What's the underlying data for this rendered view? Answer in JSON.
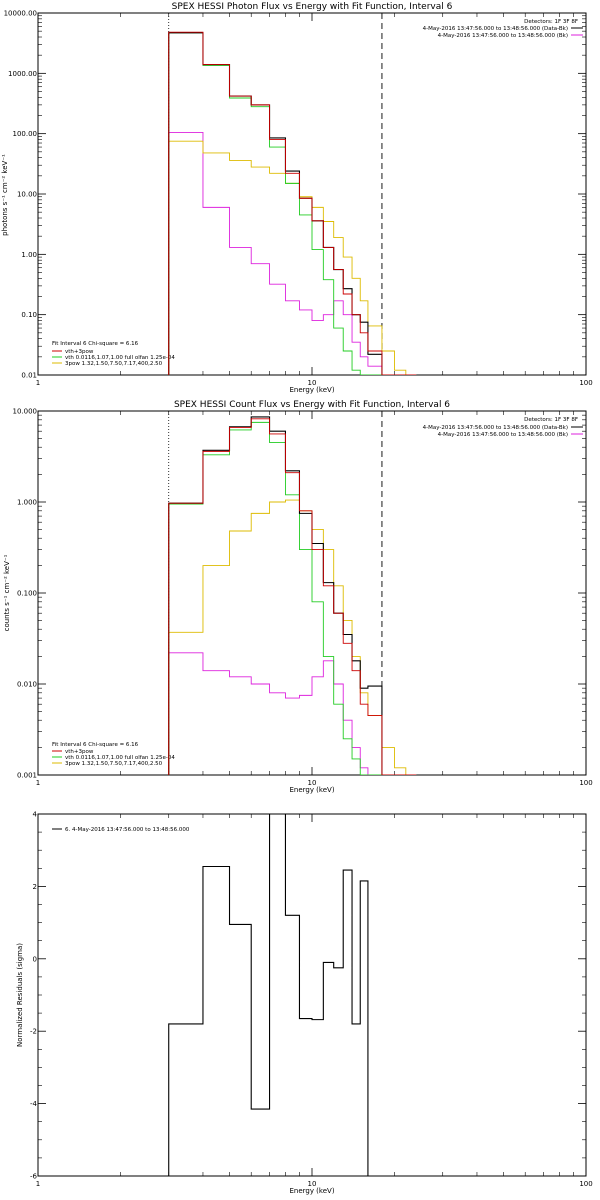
{
  "colors": {
    "data": "#000000",
    "total": "#cc0000",
    "vth": "#22cc22",
    "pow": "#ddbb00",
    "bk": "#dd22dd"
  },
  "chart_data": [
    {
      "type": "line",
      "title": "SPEX HESSI Photon Flux vs Energy with Fit Function, Interval 6",
      "xlabel": "Energy (keV)",
      "ylabel": "photons s⁻¹ cm⁻² keV⁻¹",
      "xscale": "log",
      "yscale": "log",
      "xlim": [
        1,
        100
      ],
      "ylim": [
        0.01,
        10000
      ],
      "x_tick_labels": [
        "1",
        "10",
        "100"
      ],
      "y_tick_labels": [
        "0.01",
        "0.10",
        "1.00",
        "10.00",
        "100.00",
        "1000.00",
        "10000.00"
      ],
      "energy_edges": [
        3,
        4,
        5,
        6,
        7,
        8,
        9,
        10,
        11,
        12,
        13,
        14,
        15,
        16,
        18,
        20,
        22,
        24
      ],
      "series": [
        {
          "key": "data",
          "values": [
            4700,
            1400,
            420,
            300,
            85,
            24,
            8.5,
            3.6,
            1.3,
            0.56,
            0.27,
            0.1,
            0.075,
            0.022,
            0.01,
            0.01,
            0.01
          ]
        },
        {
          "key": "total",
          "values": [
            4800,
            1400,
            420,
            300,
            80,
            22,
            8.5,
            3.6,
            1.3,
            0.56,
            0.22,
            0.1,
            0.05,
            0.025,
            0.01,
            0.01,
            0.01
          ]
        },
        {
          "key": "vth",
          "values": [
            4700,
            1350,
            390,
            280,
            60,
            15,
            4.5,
            1.2,
            0.38,
            0.06,
            0.025,
            0.012,
            0.01,
            0.01,
            0.01,
            0.01,
            0.01
          ]
        },
        {
          "key": "pow",
          "values": [
            75,
            48,
            36,
            28,
            22,
            15,
            9,
            6,
            3.5,
            1.9,
            0.9,
            0.4,
            0.17,
            0.065,
            0.025,
            0.012,
            0.01
          ]
        },
        {
          "key": "bk",
          "values": [
            105,
            6,
            1.3,
            0.7,
            0.32,
            0.17,
            0.12,
            0.08,
            0.1,
            0.17,
            0.1,
            0.035,
            0.02,
            0.014,
            0.01,
            0.01,
            0.01
          ]
        }
      ],
      "dotted_x": 3,
      "dashed_x": 18,
      "legend_tr": {
        "title": "Detectors: 1F 3F 8F",
        "lines": [
          "4-May-2016 13:47:56.000 to 13:48:56.000 (Data-Bk)",
          "4-May-2016 13:47:56.000 to 13:48:56.000 (Bk)"
        ]
      },
      "legend_bl": {
        "title": "Fit Interval 6   Chi-square = 6.16",
        "lines": [
          "vth+3pow",
          "vth 0.0116,1.07,1.00  full olfan 1.25e-04",
          "3pow 1.32,1.50,7.50,7.17,400,2.50"
        ]
      }
    },
    {
      "type": "line",
      "title": "SPEX HESSI Count Flux vs Energy with Fit Function, Interval 6",
      "xlabel": "Energy (keV)",
      "ylabel": "counts s⁻¹ cm⁻² keV⁻¹",
      "xscale": "log",
      "yscale": "log",
      "xlim": [
        1,
        100
      ],
      "ylim": [
        0.001,
        10
      ],
      "x_tick_labels": [
        "1",
        "10",
        "100"
      ],
      "y_tick_labels": [
        "0.001",
        "0.010",
        "0.100",
        "1.000",
        "10.000"
      ],
      "energy_edges": [
        3,
        4,
        5,
        6,
        7,
        8,
        9,
        10,
        11,
        12,
        13,
        14,
        15,
        16,
        18,
        20,
        22,
        24
      ],
      "series": [
        {
          "key": "data",
          "values": [
            0.97,
            3.7,
            6.7,
            8.6,
            6.0,
            2.2,
            0.75,
            0.35,
            0.13,
            0.06,
            0.035,
            0.018,
            0.009,
            0.0095,
            0.001,
            0.001,
            0.001
          ]
        },
        {
          "key": "total",
          "values": [
            0.97,
            3.6,
            6.6,
            8.2,
            5.6,
            2.1,
            0.8,
            0.3,
            0.12,
            0.06,
            0.028,
            0.014,
            0.006,
            0.0045,
            0.001,
            0.001,
            0.001
          ]
        },
        {
          "key": "vth",
          "values": [
            0.95,
            3.3,
            6.2,
            7.5,
            4.5,
            1.2,
            0.3,
            0.08,
            0.02,
            0.006,
            0.0025,
            0.0015,
            0.001,
            0.001,
            0.001,
            0.001,
            0.001
          ]
        },
        {
          "key": "pow",
          "values": [
            0.037,
            0.2,
            0.48,
            0.75,
            1.0,
            1.05,
            0.8,
            0.5,
            0.3,
            0.12,
            0.05,
            0.02,
            0.008,
            0.0045,
            0.002,
            0.0012,
            0.001
          ]
        },
        {
          "key": "bk",
          "values": [
            0.022,
            0.014,
            0.012,
            0.01,
            0.008,
            0.007,
            0.0075,
            0.012,
            0.018,
            0.01,
            0.004,
            0.002,
            0.0012,
            0.001,
            0.001,
            0.001,
            0.001
          ]
        }
      ],
      "dotted_x": 3,
      "dashed_x": 18,
      "legend_tr": {
        "title": "Detectors: 1F 3F 8F",
        "lines": [
          "4-May-2016 13:47:56.000 to 13:48:56.000 (Data-Bk)",
          "4-May-2016 13:47:56.000 to 13:48:56.000 (Bk)"
        ]
      },
      "legend_bl": {
        "title": "Fit Interval 6   Chi-square = 6.16",
        "lines": [
          "vth+3pow",
          "vth 0.0116,1.07,1.00  full olfan 1.25e-04",
          "3pow 1.32,1.50,7.50,7.17,400,2.50"
        ]
      }
    },
    {
      "type": "line",
      "title": "",
      "xlabel": "Energy (keV)",
      "ylabel": "Normalized Residuals (sigma)",
      "xscale": "log",
      "yscale": "linear",
      "xlim": [
        1,
        100
      ],
      "ylim": [
        -6,
        4
      ],
      "x_tick_labels": [
        "1",
        "10",
        "100"
      ],
      "y_tick_labels": [
        "-6",
        "-4",
        "-2",
        "0",
        "2",
        "4"
      ],
      "energy_edges": [
        3,
        4,
        5,
        6,
        7,
        8,
        9,
        10,
        11,
        12,
        13,
        14,
        15,
        16,
        18
      ],
      "series": [
        {
          "key": "data",
          "values": [
            -1.8,
            2.55,
            0.95,
            -4.15,
            4.0,
            1.2,
            -1.65,
            -1.68,
            -0.1,
            -0.25,
            2.45,
            -1.8,
            2.15,
            -6.0
          ]
        }
      ],
      "legend_tl": {
        "lines": [
          "6. 4-May-2016 13:47:56.000 to 13:48:56.000"
        ]
      }
    }
  ]
}
